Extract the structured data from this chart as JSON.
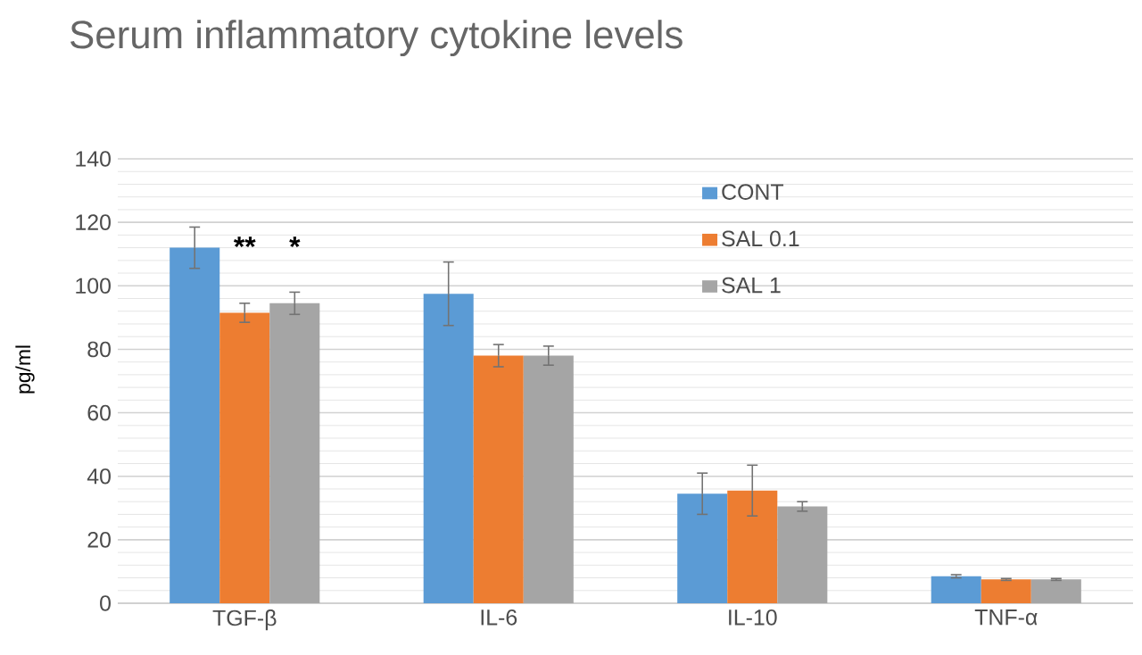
{
  "chart_data": {
    "type": "bar",
    "title": "Serum inflammatory cytokine levels",
    "ylabel": "pg/ml",
    "categories": [
      "TGF-β",
      "IL-6",
      "IL-10",
      "TNF-α"
    ],
    "series": [
      {
        "name": "CONT",
        "color": "#5b9bd5",
        "values": [
          112,
          97.5,
          34.5,
          8.5
        ],
        "errors": [
          6.5,
          10,
          6.5,
          0.5
        ]
      },
      {
        "name": "SAL 0.1",
        "color": "#ed7d31",
        "values": [
          91.5,
          78,
          35.5,
          7.5
        ],
        "errors": [
          3,
          3.5,
          8,
          0.3
        ]
      },
      {
        "name": "SAL 1",
        "color": "#a5a5a5",
        "values": [
          94.5,
          78,
          30.5,
          7.5
        ],
        "errors": [
          3.5,
          3,
          1.5,
          0.3
        ]
      }
    ],
    "ylim": [
      0,
      140
    ],
    "yticks": [
      0,
      20,
      40,
      60,
      80,
      100,
      120,
      140
    ],
    "grid": "y",
    "legend": "top right",
    "annotations": [
      "**",
      "*"
    ]
  }
}
